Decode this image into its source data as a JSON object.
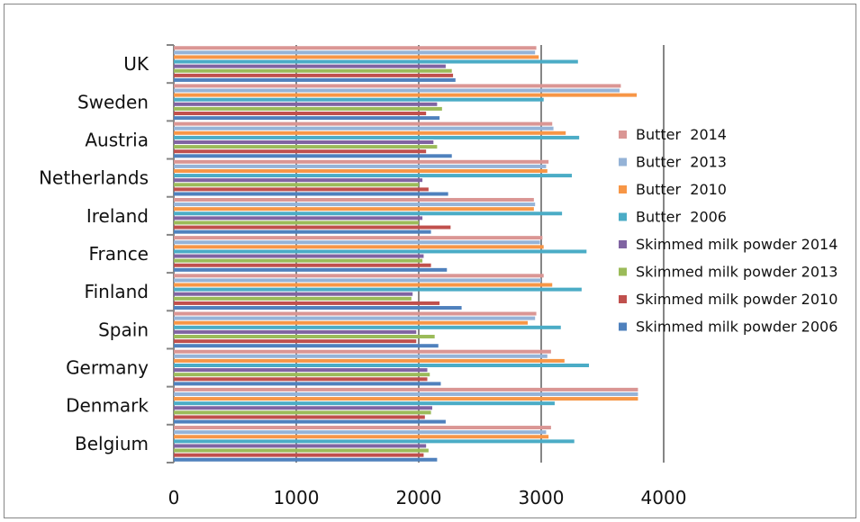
{
  "chart_data": {
    "type": "bar",
    "orientation": "horizontal",
    "title": "",
    "xlabel": "",
    "ylabel": "",
    "xlim": [
      0,
      4000
    ],
    "x_ticks": [
      "0",
      "1000",
      "2000",
      "3000",
      "4000"
    ],
    "grid": "vertical major gridlines",
    "legend_position": "right",
    "categories": [
      "Belgium",
      "Denmark",
      "Germany",
      "Spain",
      "Finland",
      "France",
      "Ireland",
      "Netherlands",
      "Austria",
      "Sweden",
      "UK"
    ],
    "series": [
      {
        "name": "Skimmed milk powder 2006",
        "color": "#4f81bd",
        "values": [
          2150,
          2220,
          2180,
          2160,
          2350,
          2230,
          2100,
          2240,
          2270,
          2170,
          2300
        ]
      },
      {
        "name": "Skimmed milk powder 2010",
        "color": "#c0504d",
        "values": [
          2040,
          2050,
          2070,
          1980,
          2170,
          2100,
          2260,
          2080,
          2060,
          2060,
          2280
        ]
      },
      {
        "name": "Skimmed milk powder 2013",
        "color": "#9bbb59",
        "values": [
          2080,
          2100,
          2090,
          2130,
          1940,
          2030,
          2000,
          2000,
          2150,
          2190,
          2270
        ]
      },
      {
        "name": "Skimmed milk powder 2014",
        "color": "#8064a2",
        "values": [
          2060,
          2110,
          2070,
          1980,
          1950,
          2040,
          2030,
          2030,
          2120,
          2150,
          2220
        ]
      },
      {
        "name": "Butter  2006",
        "color": "#4bacc6",
        "values": [
          3270,
          3110,
          3390,
          3160,
          3330,
          3370,
          3170,
          3250,
          3310,
          3020,
          3300
        ]
      },
      {
        "name": "Butter  2010",
        "color": "#f79646",
        "values": [
          3060,
          3790,
          3190,
          2890,
          3090,
          3020,
          2940,
          3050,
          3200,
          3780,
          2980
        ]
      },
      {
        "name": "Butter  2013",
        "color": "#95b3d7",
        "values": [
          3040,
          3790,
          3050,
          2950,
          3000,
          2990,
          2950,
          3040,
          3100,
          3640,
          2950
        ]
      },
      {
        "name": "Butter  2014",
        "color": "#da9694",
        "values": [
          3080,
          3790,
          3080,
          2960,
          3020,
          3010,
          2940,
          3060,
          3090,
          3650,
          2960
        ]
      }
    ]
  }
}
